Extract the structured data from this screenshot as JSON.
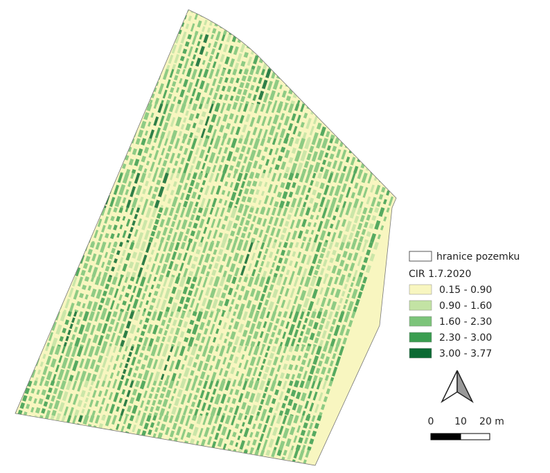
{
  "legend": {
    "boundary": {
      "label": "hranice pozemku",
      "color": "#ffffff"
    },
    "title": "CIR 1.7.2020",
    "items": [
      {
        "label": "0.15 - 0.90",
        "color": "#f8f6c0"
      },
      {
        "label": "0.90 - 1.60",
        "color": "#c3e3a4"
      },
      {
        "label": "1.60 - 2.30",
        "color": "#7cc47a"
      },
      {
        "label": "2.30 - 3.00",
        "color": "#3a9d50"
      },
      {
        "label": "3.00 - 3.77",
        "color": "#0b6a33"
      }
    ]
  },
  "scale_bar": {
    "labels": [
      "0",
      "10",
      "20 m"
    ]
  }
}
